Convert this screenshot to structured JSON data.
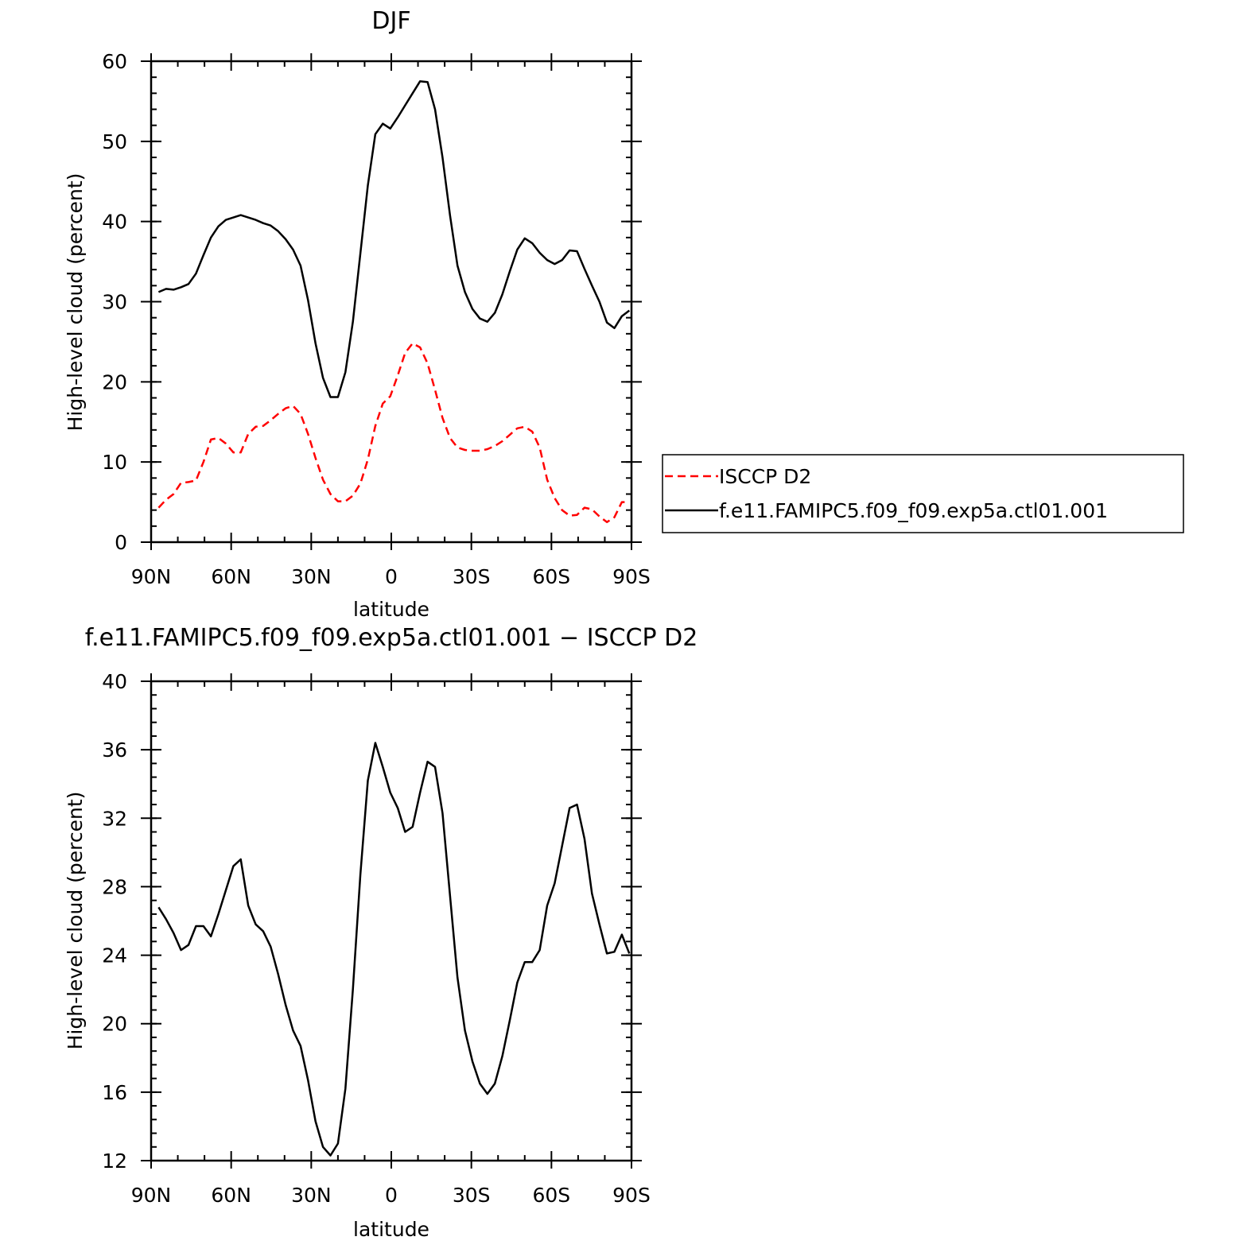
{
  "chart_data": [
    {
      "type": "line",
      "title": "DJF",
      "xlabel": "latitude",
      "ylabel": "High-level cloud (percent)",
      "xlim": [
        90,
        -90
      ],
      "ylim": [
        0,
        60
      ],
      "yticks": [
        "0",
        "10",
        "20",
        "30",
        "40",
        "50",
        "60"
      ],
      "yticks_values": [
        0,
        10,
        20,
        30,
        40,
        50,
        60
      ],
      "xticks": [
        "90N",
        "60N",
        "30N",
        "0",
        "30S",
        "60S",
        "90S"
      ],
      "xticks_values": [
        90,
        60,
        30,
        0,
        -30,
        -60,
        -90
      ],
      "grid": false,
      "legend": "outside-right",
      "x": [
        87.2,
        84.4,
        81.6,
        78.8,
        76.0,
        73.2,
        70.4,
        67.6,
        64.8,
        62.0,
        59.2,
        56.4,
        53.6,
        50.8,
        48.0,
        45.2,
        42.4,
        39.6,
        36.8,
        34.0,
        31.2,
        28.4,
        25.6,
        22.8,
        20.0,
        17.2,
        14.4,
        11.6,
        8.8,
        6.0,
        3.2,
        0.4,
        -2.4,
        -5.2,
        -8.0,
        -10.8,
        -13.6,
        -16.4,
        -19.2,
        -22.0,
        -24.8,
        -27.6,
        -30.4,
        -33.2,
        -36.0,
        -38.8,
        -41.6,
        -44.4,
        -47.2,
        -50.0,
        -52.8,
        -55.6,
        -58.4,
        -61.2,
        -64.0,
        -66.8,
        -69.6,
        -72.4,
        -75.2,
        -78.0,
        -80.8,
        -83.6,
        -86.4,
        -89.2
      ],
      "series": [
        {
          "name": "ISCCP D2",
          "color": "#ff0000",
          "dash": "dashed",
          "values": [
            4.3,
            5.3,
            6.0,
            7.4,
            7.5,
            7.7,
            10.0,
            12.8,
            13.0,
            12.3,
            11.2,
            11.2,
            13.5,
            14.4,
            14.5,
            15.2,
            16.0,
            16.7,
            17.0,
            16.0,
            13.5,
            10.5,
            7.8,
            6.0,
            5.1,
            5.1,
            5.8,
            7.3,
            10.3,
            14.5,
            17.3,
            18.2,
            20.8,
            23.6,
            24.8,
            24.3,
            22.3,
            19.0,
            15.5,
            13.0,
            11.8,
            11.5,
            11.4,
            11.4,
            11.6,
            12.0,
            12.6,
            13.4,
            14.2,
            14.4,
            13.8,
            11.8,
            7.8,
            5.5,
            4.0,
            3.3,
            3.4,
            4.3,
            4.1,
            3.2,
            2.5,
            3.1,
            5.0,
            5.0
          ]
        },
        {
          "name": "f.e11.FAMIPC5.f09_f09.exp5a.ctl01.001",
          "color": "#000000",
          "dash": "solid",
          "values": [
            31.2,
            31.6,
            31.5,
            31.8,
            32.2,
            33.5,
            35.8,
            38.0,
            39.4,
            40.2,
            40.5,
            40.8,
            40.5,
            40.2,
            39.8,
            39.5,
            38.8,
            37.8,
            36.5,
            34.5,
            30.2,
            24.8,
            20.5,
            18.1,
            18.1,
            21.2,
            27.5,
            36.0,
            44.5,
            50.9,
            52.2,
            51.6,
            53.0,
            54.5,
            56.0,
            57.5,
            57.4,
            54.0,
            48.0,
            40.8,
            34.5,
            31.2,
            29.1,
            27.9,
            27.5,
            28.6,
            30.9,
            33.8,
            36.5,
            37.9,
            37.3,
            36.1,
            35.2,
            34.7,
            35.2,
            36.4,
            36.3,
            34.1,
            32.0,
            30.0,
            27.4,
            26.7,
            28.2,
            28.9
          ]
        }
      ]
    },
    {
      "type": "line",
      "title": "f.e11.FAMIPC5.f09_f09.exp5a.ctl01.001 − ISCCP D2",
      "xlabel": "latitude",
      "ylabel": "High-level cloud (percent)",
      "xlim": [
        90,
        -90
      ],
      "ylim": [
        12,
        40
      ],
      "yticks": [
        "12",
        "16",
        "20",
        "24",
        "28",
        "32",
        "36",
        "40"
      ],
      "yticks_values": [
        12,
        16,
        20,
        24,
        28,
        32,
        36,
        40
      ],
      "xticks": [
        "90N",
        "60N",
        "30N",
        "0",
        "30S",
        "60S",
        "90S"
      ],
      "xticks_values": [
        90,
        60,
        30,
        0,
        -30,
        -60,
        -90
      ],
      "grid": false,
      "x": [
        87.2,
        84.4,
        81.6,
        78.8,
        76.0,
        73.2,
        70.4,
        67.6,
        64.8,
        62.0,
        59.2,
        56.4,
        53.6,
        50.8,
        48.0,
        45.2,
        42.4,
        39.6,
        36.8,
        34.0,
        31.2,
        28.4,
        25.6,
        22.8,
        20.0,
        17.2,
        14.4,
        11.6,
        8.8,
        6.0,
        3.2,
        0.4,
        -2.4,
        -5.2,
        -8.0,
        -10.8,
        -13.6,
        -16.4,
        -19.2,
        -22.0,
        -24.8,
        -27.6,
        -30.4,
        -33.2,
        -36.0,
        -38.8,
        -41.6,
        -44.4,
        -47.2,
        -50.0,
        -52.8,
        -55.6,
        -58.4,
        -61.2,
        -64.0,
        -66.8,
        -69.6,
        -72.4,
        -75.2,
        -78.0,
        -80.8,
        -83.6,
        -86.4,
        -89.2
      ],
      "series": [
        {
          "color": "#000000",
          "dash": "solid",
          "values": [
            26.8,
            26.1,
            25.3,
            24.3,
            24.6,
            25.7,
            25.7,
            25.1,
            26.4,
            27.8,
            29.2,
            29.6,
            26.9,
            25.8,
            25.4,
            24.5,
            22.9,
            21.1,
            19.6,
            18.7,
            16.7,
            14.3,
            12.8,
            12.3,
            13.0,
            16.2,
            22.0,
            28.7,
            34.2,
            36.4,
            35.0,
            33.5,
            32.6,
            31.2,
            31.5,
            33.5,
            35.3,
            35.0,
            32.3,
            27.5,
            22.7,
            19.6,
            17.8,
            16.5,
            15.9,
            16.5,
            18.1,
            20.2,
            22.4,
            23.6,
            23.6,
            24.3,
            26.9,
            28.2,
            30.4,
            32.6,
            32.8,
            30.8,
            27.6,
            25.8,
            24.1,
            24.2,
            25.2,
            24.1
          ]
        }
      ]
    }
  ]
}
